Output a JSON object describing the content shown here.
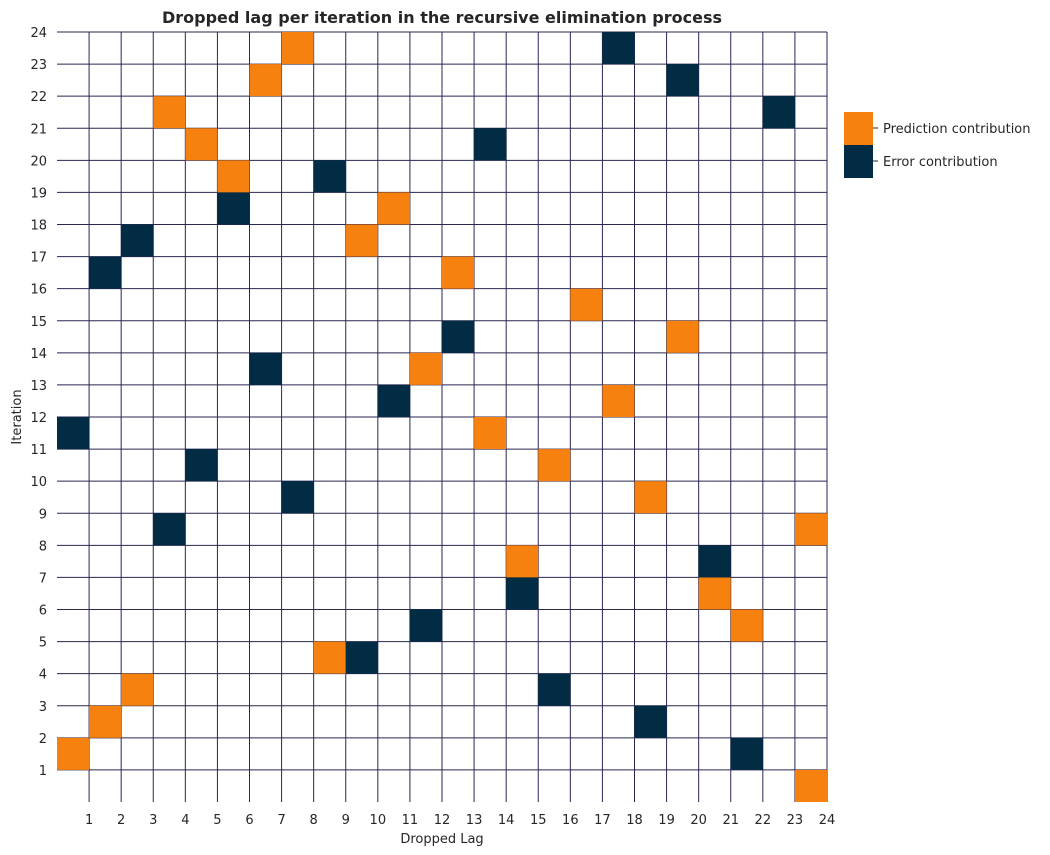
{
  "chart_data": {
    "type": "heatmap",
    "title": "Dropped lag per iteration in the recursive elimination process",
    "xlabel": "Dropped Lag",
    "ylabel": "Iteration",
    "xlim": [
      0,
      24
    ],
    "ylim": [
      0,
      24
    ],
    "x_ticks": [
      1,
      2,
      3,
      4,
      5,
      6,
      7,
      8,
      9,
      10,
      11,
      12,
      13,
      14,
      15,
      16,
      17,
      18,
      19,
      20,
      21,
      22,
      23,
      24
    ],
    "y_ticks": [
      1,
      2,
      3,
      4,
      5,
      6,
      7,
      8,
      9,
      10,
      11,
      12,
      13,
      14,
      15,
      16,
      17,
      18,
      19,
      20,
      21,
      22,
      23,
      24
    ],
    "grid": true,
    "legend_position": "right",
    "series": [
      {
        "name": "Prediction contribution",
        "color": "#F7810F",
        "points": [
          {
            "lag": 24,
            "iteration": 0
          },
          {
            "lag": 1,
            "iteration": 1
          },
          {
            "lag": 2,
            "iteration": 2
          },
          {
            "lag": 3,
            "iteration": 3
          },
          {
            "lag": 9,
            "iteration": 4
          },
          {
            "lag": 22,
            "iteration": 5
          },
          {
            "lag": 21,
            "iteration": 6
          },
          {
            "lag": 15,
            "iteration": 7
          },
          {
            "lag": 24,
            "iteration": 8
          },
          {
            "lag": 19,
            "iteration": 9
          },
          {
            "lag": 16,
            "iteration": 10
          },
          {
            "lag": 14,
            "iteration": 11
          },
          {
            "lag": 18,
            "iteration": 12
          },
          {
            "lag": 12,
            "iteration": 13
          },
          {
            "lag": 20,
            "iteration": 14
          },
          {
            "lag": 17,
            "iteration": 15
          },
          {
            "lag": 13,
            "iteration": 16
          },
          {
            "lag": 10,
            "iteration": 17
          },
          {
            "lag": 11,
            "iteration": 18
          },
          {
            "lag": 6,
            "iteration": 19
          },
          {
            "lag": 5,
            "iteration": 20
          },
          {
            "lag": 4,
            "iteration": 21
          },
          {
            "lag": 7,
            "iteration": 22
          },
          {
            "lag": 8,
            "iteration": 23
          }
        ]
      },
      {
        "name": "Error contribution",
        "color": "#022C43",
        "points": [
          {
            "lag": 22,
            "iteration": 1
          },
          {
            "lag": 19,
            "iteration": 2
          },
          {
            "lag": 16,
            "iteration": 3
          },
          {
            "lag": 10,
            "iteration": 4
          },
          {
            "lag": 12,
            "iteration": 5
          },
          {
            "lag": 15,
            "iteration": 6
          },
          {
            "lag": 21,
            "iteration": 7
          },
          {
            "lag": 4,
            "iteration": 8
          },
          {
            "lag": 8,
            "iteration": 9
          },
          {
            "lag": 5,
            "iteration": 10
          },
          {
            "lag": 1,
            "iteration": 11
          },
          {
            "lag": 11,
            "iteration": 12
          },
          {
            "lag": 7,
            "iteration": 13
          },
          {
            "lag": 13,
            "iteration": 14
          },
          {
            "lag": 2,
            "iteration": 16
          },
          {
            "lag": 3,
            "iteration": 17
          },
          {
            "lag": 6,
            "iteration": 18
          },
          {
            "lag": 9,
            "iteration": 19
          },
          {
            "lag": 14,
            "iteration": 20
          },
          {
            "lag": 23,
            "iteration": 21
          },
          {
            "lag": 20,
            "iteration": 22
          },
          {
            "lag": 18,
            "iteration": 23
          }
        ]
      }
    ]
  }
}
